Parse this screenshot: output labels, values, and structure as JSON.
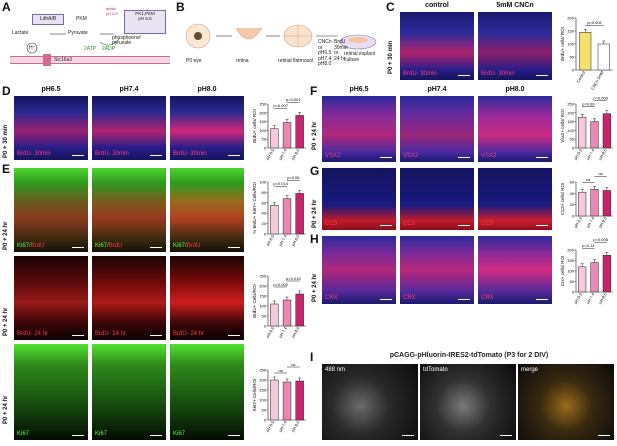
{
  "panel_letters": {
    "a": "A",
    "b": "B",
    "c": "C",
    "d": "D",
    "e": "E",
    "f": "F",
    "g": "G",
    "h": "H",
    "i": "I"
  },
  "panel_a": {
    "ldh": "LdhA/B",
    "pkm": "PKM",
    "pk_set": "PK1,PKM\npH 6.5",
    "pyruvate": "Pyruvate",
    "lactate": "Lactate",
    "phospho": "phosphoenol\npyruvate",
    "atp": "2ATP",
    "adp": "2ADP",
    "h": "H⁺",
    "slc": "Slc16a3",
    "acidic": "acidic\npH 6.5"
  },
  "panel_b": {
    "p0eye": "P0 eye",
    "retina": "retina",
    "flatmount": "retinal flatmount",
    "cncn": "CNCn\nor\npH6.5\npH7.4\npH8.0",
    "brdu": "BrdU\n30min\nor\n24 hr",
    "explant": "retinal explant\nculture"
  },
  "panel_c": {
    "control": "control",
    "cncn": "5mM CNCn",
    "row": "P0 + 30 min",
    "stain": "BrdU- 30min",
    "p": "p=0.002",
    "ylabel": "BrdU+ cells/ ROI"
  },
  "panel_d": {
    "cols": [
      "pH6.5",
      "pH7.4",
      "pH8.0"
    ],
    "row": "P0 + 30 min",
    "stain": "BrdU- 30min",
    "p1": "p=0.007",
    "p2": "p=0.001",
    "ylabel": "BrdU+ cells/ ROI"
  },
  "panel_e": {
    "row": "P0 + 24 hr",
    "stain_merge_a": "Ki67/",
    "stain_merge_b": "BrdU",
    "stain_brdu": "BrdU- 24 hr",
    "stain_ki67": "Ki67",
    "chart1_p1": "p=0.014",
    "chart1_p2": "p=0.06",
    "chart1_ylabel": "% BrdU+ Ki67+ Cells/ROI",
    "chart2_p1": "p=0.002",
    "chart2_p2": "p=0.015",
    "chart2_ylabel": "BrdU+ Cells/ROI",
    "chart3_ns1": "ns",
    "chart3_ns2": "ns",
    "chart3_ylabel": "Ki67+ Cells/ROI"
  },
  "panel_f": {
    "cols": [
      "pH6.5",
      "pH7.4",
      "pH8.0"
    ],
    "row": "P0 + 24 hr",
    "stain": "VSX2",
    "p1": "p=0.09",
    "p2": "p=0.009",
    "ylabel": "Vsx2+ cells/ ROI"
  },
  "panel_g": {
    "row": "P0 + 24 hr",
    "stain": "CC3",
    "ns1": "ns",
    "ns2": "ns",
    "ylabel": "CC3+ cells/ ROI"
  },
  "panel_h": {
    "row": "P0 + 24 hr",
    "stain": "CRX",
    "p1": "p=0.14",
    "p2": "p=0.006",
    "ylabel": "Crx+ cells/ ROI"
  },
  "panel_i": {
    "title": "pCAGG-pHluorin-IRES2-tdTomato (P3 for 2 DIV)",
    "c1": "488 nm",
    "c2": "tdTomato",
    "c3": "merge"
  },
  "colors": {
    "bar_light": "#f5c8dc",
    "bar_mid": "#e888b4",
    "bar_dark": "#c8246e",
    "bar_yellow": "#f5e06a",
    "bar_white": "#ffffff"
  },
  "chart_data": [
    {
      "id": "c",
      "type": "bar",
      "categories": [
        "Control",
        "CNCn 5mM"
      ],
      "values": [
        145,
        100
      ],
      "ylim": [
        0,
        200
      ],
      "yticks": [
        0,
        50,
        100,
        150,
        200
      ]
    },
    {
      "id": "d",
      "type": "bar",
      "categories": [
        "pH 6.5",
        "pH 7.4",
        "pH 8.0"
      ],
      "values": [
        110,
        145,
        185
      ],
      "ylim": [
        0,
        250
      ],
      "yticks": [
        0,
        50,
        100,
        150,
        200,
        250
      ]
    },
    {
      "id": "e1",
      "type": "bar",
      "categories": [
        "pH 6.5",
        "pH 7.4",
        "pH 8.0"
      ],
      "values": [
        55,
        68,
        78
      ],
      "ylim": [
        0,
        100
      ],
      "yticks": [
        0,
        20,
        40,
        60,
        80,
        100
      ]
    },
    {
      "id": "e2",
      "type": "bar",
      "categories": [
        "pH 6.5",
        "pH 7.4",
        "pH 8.0"
      ],
      "values": [
        110,
        130,
        160
      ],
      "ylim": [
        0,
        250
      ],
      "yticks": [
        0,
        50,
        100,
        150,
        200,
        250
      ]
    },
    {
      "id": "e3",
      "type": "bar",
      "categories": [
        "pH 6.5",
        "pH 7.4",
        "pH 8.0"
      ],
      "values": [
        200,
        190,
        195
      ],
      "ylim": [
        0,
        250
      ],
      "yticks": [
        0,
        50,
        100,
        150,
        200,
        250
      ]
    },
    {
      "id": "f",
      "type": "bar",
      "categories": [
        "pH 6.5",
        "pH 7.4",
        "pH 8.0"
      ],
      "values": [
        175,
        150,
        195
      ],
      "ylim": [
        0,
        250
      ],
      "yticks": [
        0,
        50,
        100,
        150,
        200,
        250
      ]
    },
    {
      "id": "g",
      "type": "bar",
      "categories": [
        "pH 6.5",
        "pH 7.4",
        "pH 8.0"
      ],
      "values": [
        42,
        47,
        45
      ],
      "ylim": [
        0,
        60
      ],
      "yticks": [
        0,
        20,
        40,
        60
      ]
    },
    {
      "id": "h",
      "type": "bar",
      "categories": [
        "pH 6.5",
        "pH 7.4",
        "pH 8.0"
      ],
      "values": [
        120,
        140,
        175
      ],
      "ylim": [
        0,
        200
      ],
      "yticks": [
        0,
        50,
        100,
        150,
        200
      ]
    }
  ]
}
